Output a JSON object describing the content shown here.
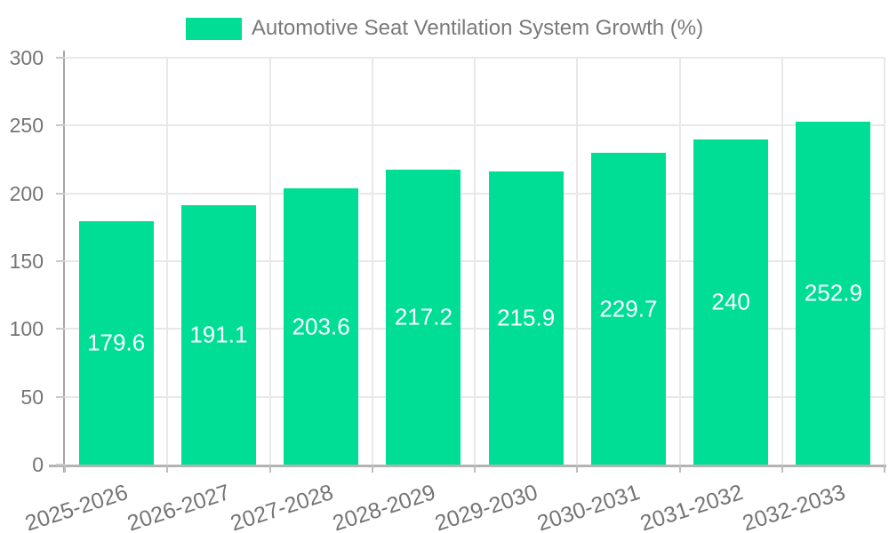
{
  "chart_data": {
    "type": "bar",
    "title": "Automotive Seat Ventilation System Growth (%)",
    "legend": {
      "label": "Automotive Seat Ventilation System Growth (%)",
      "position": "top"
    },
    "categories": [
      "2025-2026",
      "2026-2027",
      "2027-2028",
      "2028-2029",
      "2029-2030",
      "2030-2031",
      "2031-2032",
      "2032-2033"
    ],
    "series": [
      {
        "name": "Automotive Seat Ventilation System Growth (%)",
        "values": [
          179.6,
          191.1,
          203.6,
          217.2,
          215.9,
          229.7,
          240,
          252.9
        ]
      }
    ],
    "xlabel": "",
    "ylabel": "",
    "ylim": [
      0,
      300
    ],
    "yticks": [
      0,
      50,
      100,
      150,
      200,
      250,
      300
    ],
    "grid": true,
    "x_label_rotation_deg": -18,
    "colors": {
      "bar": "#00DE95",
      "value_label": "#ffffff",
      "axis_text": "#757575",
      "legend_text": "#7a7a7a",
      "gridline": "#e8e8e8",
      "y_axis_line": "#a6a6a6",
      "x_axis_line": "#b3b3b3"
    }
  }
}
